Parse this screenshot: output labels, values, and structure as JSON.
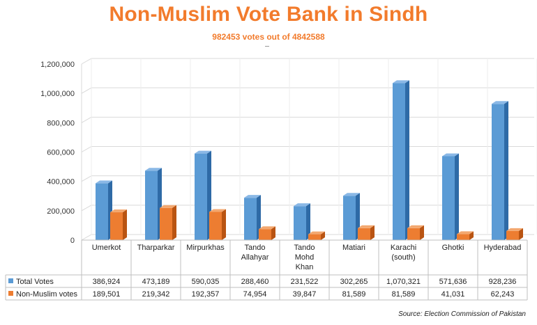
{
  "title": "Non-Muslim Vote Bank in Sindh",
  "subtitle": "982453 votes out of 4842588",
  "source": "Source: Election Commission of Pakistan",
  "colors": {
    "total": "#5b9bd5",
    "total_dark": "#2e6aa6",
    "total_top": "#8ab8e6",
    "nonmuslim": "#ed7d31",
    "nonmuslim_dark": "#b95412",
    "nonmuslim_top": "#f3a870",
    "title": "#f27b2c",
    "grid": "#d9d9d9"
  },
  "chart_data": {
    "type": "bar",
    "title": "Non-Muslim Vote Bank in Sindh",
    "subtitle": "982453 votes out of 4842588",
    "categories": [
      "Umerkot",
      "Tharparkar",
      "Mirpurkhas",
      "Tando Allahyar",
      "Tando Mohd Khan",
      "Matiari",
      "Karachi (south)",
      "Ghotki",
      "Hyderabad"
    ],
    "category_lines": [
      [
        "Umerkot"
      ],
      [
        "Tharparkar"
      ],
      [
        "Mirpurkhas"
      ],
      [
        "Tando",
        "Allahyar"
      ],
      [
        "Tando",
        "Mohd",
        "Khan"
      ],
      [
        "Matiari"
      ],
      [
        "Karachi",
        "(south)"
      ],
      [
        "Ghotki"
      ],
      [
        "Hyderabad"
      ]
    ],
    "series": [
      {
        "name": "Total Votes",
        "values": [
          386924,
          473189,
          590035,
          288460,
          231522,
          302265,
          1070321,
          571636,
          928236
        ],
        "labels": [
          "386,924",
          "473,189",
          "590,035",
          "288,460",
          "231,522",
          "302,265",
          "1,070,321",
          "571,636",
          "928,236"
        ]
      },
      {
        "name": "Non-Muslim votes",
        "values": [
          189501,
          219342,
          192357,
          74954,
          39847,
          81589,
          81589,
          41031,
          62243
        ],
        "labels": [
          "189,501",
          "219,342",
          "192,357",
          "74,954",
          "39,847",
          "81,589",
          "81,589",
          "41,031",
          "62,243"
        ]
      }
    ],
    "ylim": [
      0,
      1200000
    ],
    "yticks": [
      0,
      200000,
      400000,
      600000,
      800000,
      1000000,
      1200000
    ],
    "ytick_labels": [
      "0",
      "200,000",
      "400,000",
      "600,000",
      "800,000",
      "1,000,000",
      "1,200,000"
    ],
    "grid": true,
    "legend": "data-table"
  }
}
